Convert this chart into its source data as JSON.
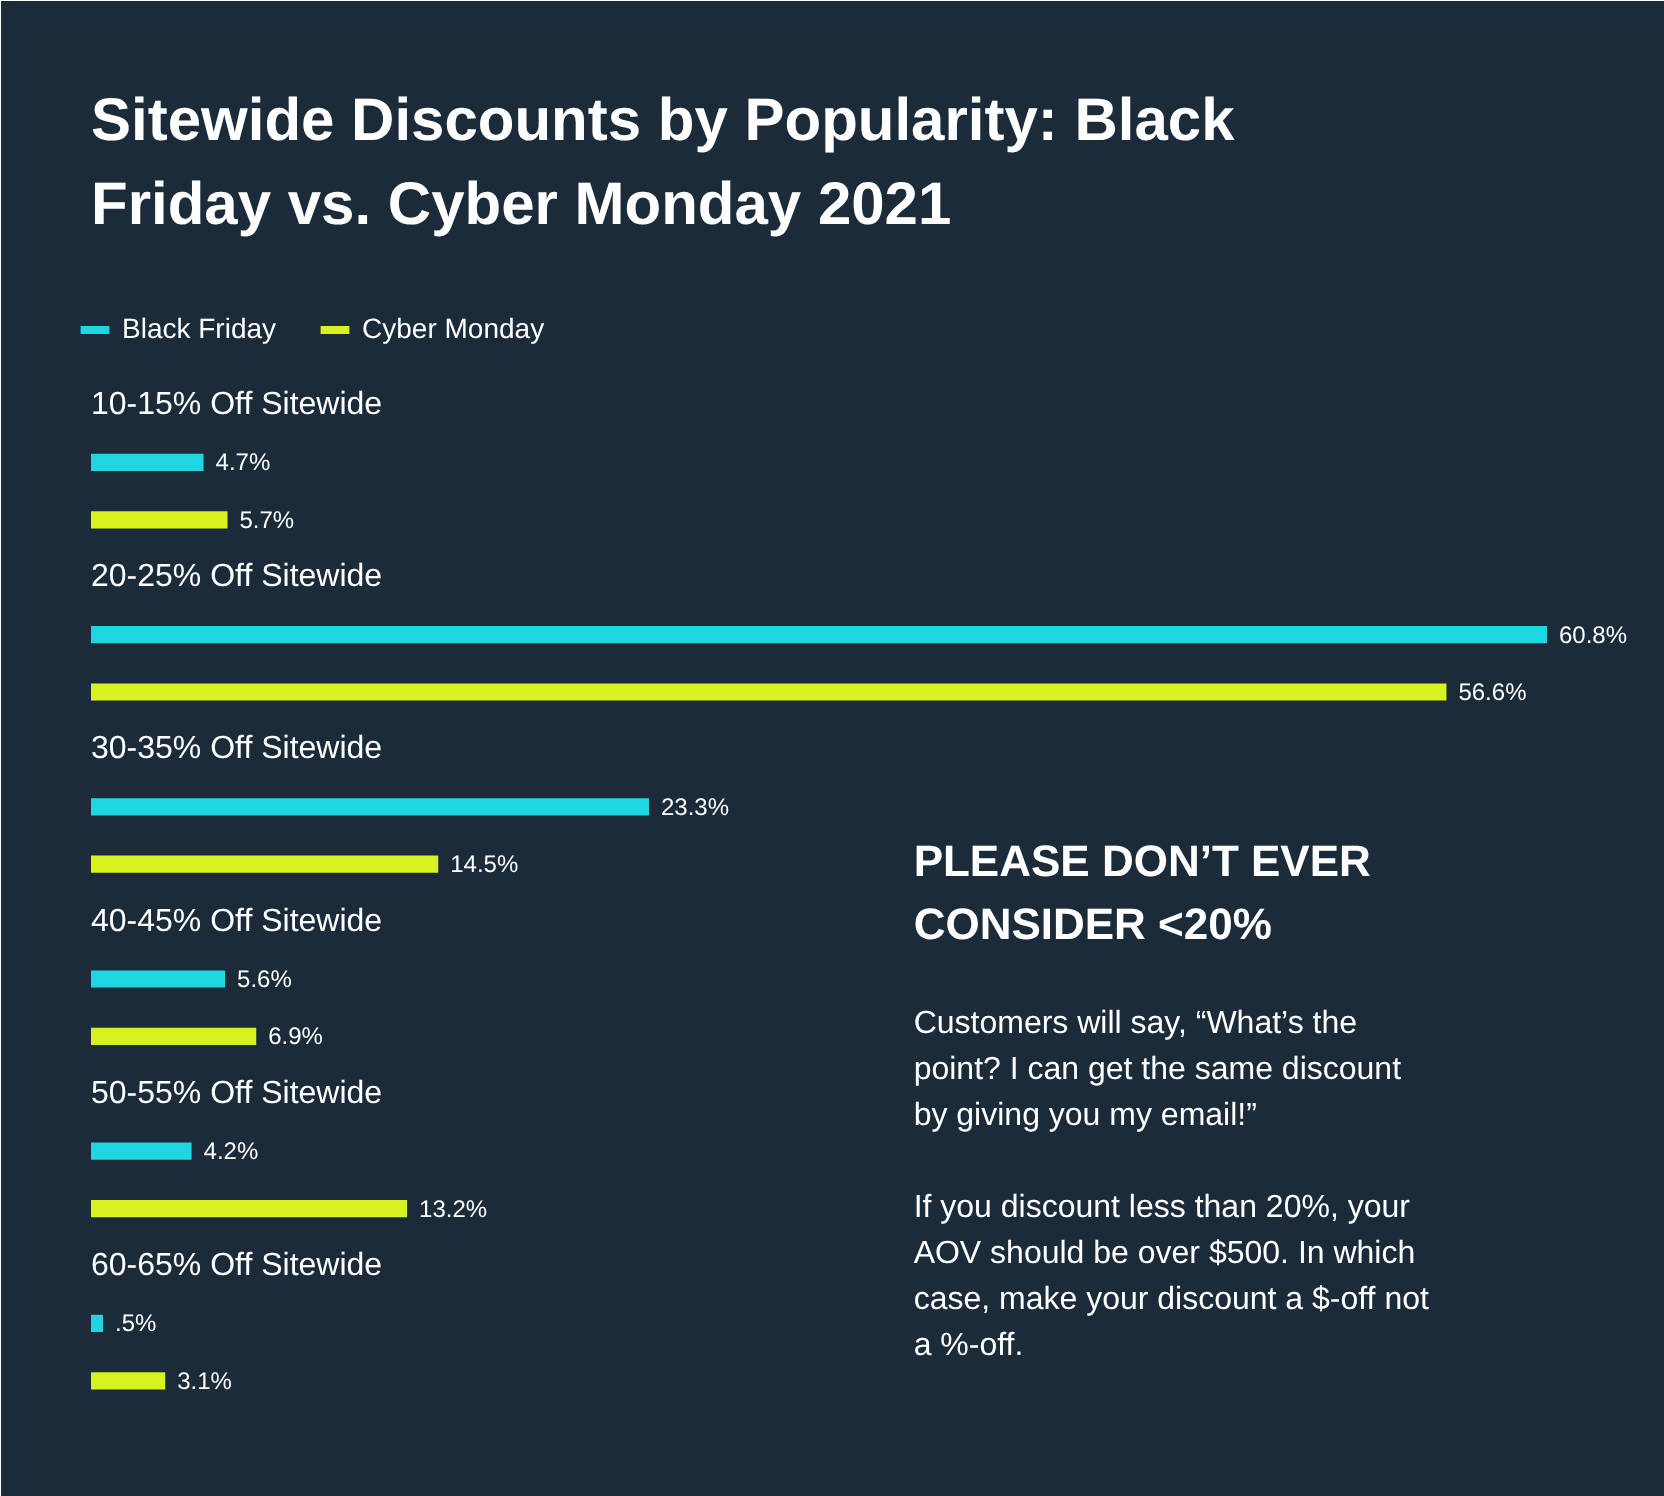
{
  "chart_data": {
    "type": "bar",
    "orientation": "horizontal",
    "title": "Sitewide Discounts by Popularity: Black Friday vs. Cyber Monday 2021",
    "categories": [
      "10-15% Off Sitewide",
      "20-25% Off Sitewide",
      "30-35% Off Sitewide",
      "40-45% Off Sitewide",
      "50-55% Off Sitewide",
      "60-65% Off Sitewide"
    ],
    "series": [
      {
        "name": "Black Friday",
        "color": "#1ed6e0",
        "values": [
          4.7,
          60.8,
          23.3,
          5.6,
          4.2,
          0.5
        ],
        "value_labels": [
          "4.7%",
          "60.8%",
          "23.3%",
          "5.6%",
          "4.2%",
          ".5%"
        ]
      },
      {
        "name": "Cyber Monday",
        "color": "#d7f21e",
        "values": [
          5.7,
          56.6,
          14.5,
          6.9,
          13.2,
          3.1
        ],
        "value_labels": [
          "5.7%",
          "56.6%",
          "14.5%",
          "6.9%",
          "13.2%",
          "3.1%"
        ]
      }
    ],
    "legend": "top left",
    "annotations": [
      "PLEASE DON’T EVER CONSIDER <20%",
      "Customers will say, “What’s the point? I can get the same discount by giving you my email!”",
      "If you discount less than 20%, your AOV should be over $500. In which case, make your discount a $-off not a %-off."
    ]
  }
}
